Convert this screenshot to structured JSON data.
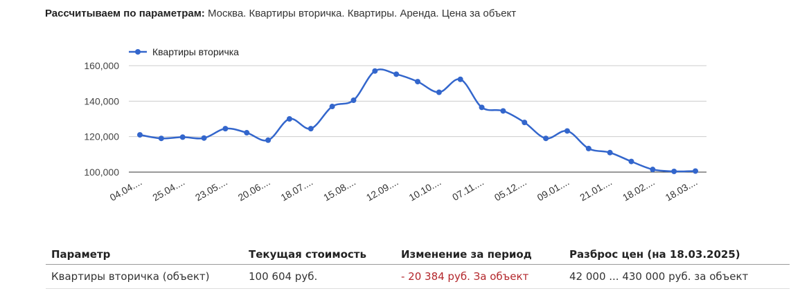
{
  "header": {
    "label": "Рассчитываем по параметрам:",
    "value": "Москва. Квартиры вторичка. Квартиры. Аренда. Цена за объект"
  },
  "chart_data": {
    "type": "line",
    "series": [
      {
        "name": "Квартиры вторичка",
        "color": "#3366cc",
        "values": [
          121000,
          119000,
          119700,
          119200,
          124500,
          122200,
          118000,
          130000,
          124500,
          137000,
          140500,
          157000,
          155200,
          151000,
          145000,
          152300,
          136500,
          134500,
          128000,
          119000,
          123200,
          113300,
          111000,
          106000,
          101500,
          100400,
          100604
        ]
      }
    ],
    "x_tick_labels": [
      "04.04....",
      "25.04....",
      "23.05....",
      "20.06....",
      "18.07....",
      "15.08....",
      "12.09....",
      "10.10....",
      "07.11....",
      "05.12....",
      "09.01....",
      "21.01....",
      "18.02....",
      "18.03...."
    ],
    "y_tick_labels": [
      "160,000",
      "140,000",
      "120,000",
      "100,000"
    ],
    "y_ticks": [
      160000,
      140000,
      120000,
      100000
    ],
    "ylim": [
      100000,
      160000
    ],
    "legend_position": "top-left",
    "grid": true
  },
  "table": {
    "headers": [
      "Параметр",
      "Текущая стоимость",
      "Изменение за период",
      "Разброс цен (на 18.03.2025)"
    ],
    "rows": [
      [
        "Квартиры вторичка (объект)",
        "100 604 руб.",
        "- 20 384 руб. За объект",
        "42 000 ... 430 000 руб. за объект"
      ]
    ]
  }
}
